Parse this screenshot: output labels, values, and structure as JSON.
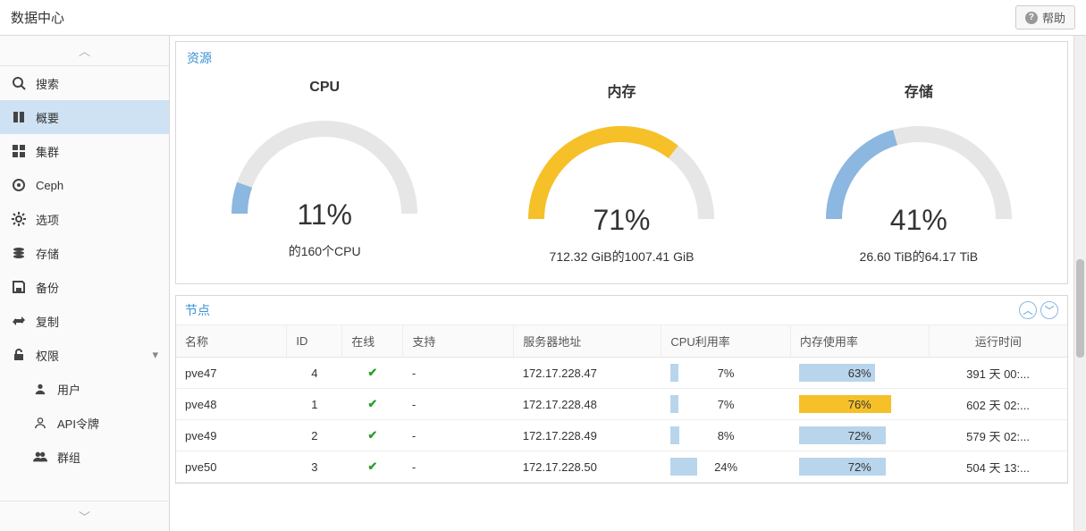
{
  "header": {
    "title": "数据中心",
    "help_label": "帮助"
  },
  "sidebar": {
    "items": [
      {
        "id": "search",
        "label": "搜索",
        "icon": "search",
        "active": false,
        "sub": false,
        "caret": false
      },
      {
        "id": "summary",
        "label": "概要",
        "icon": "book",
        "active": true,
        "sub": false,
        "caret": false
      },
      {
        "id": "cluster",
        "label": "集群",
        "icon": "grid",
        "active": false,
        "sub": false,
        "caret": false
      },
      {
        "id": "ceph",
        "label": "Ceph",
        "icon": "target",
        "active": false,
        "sub": false,
        "caret": false
      },
      {
        "id": "options",
        "label": "选项",
        "icon": "gear",
        "active": false,
        "sub": false,
        "caret": false
      },
      {
        "id": "storage",
        "label": "存储",
        "icon": "stack",
        "active": false,
        "sub": false,
        "caret": false
      },
      {
        "id": "backup",
        "label": "备份",
        "icon": "save",
        "active": false,
        "sub": false,
        "caret": false
      },
      {
        "id": "replication",
        "label": "复制",
        "icon": "repeat",
        "active": false,
        "sub": false,
        "caret": false
      },
      {
        "id": "permissions",
        "label": "权限",
        "icon": "unlock",
        "active": false,
        "sub": false,
        "caret": true
      },
      {
        "id": "users",
        "label": "用户",
        "icon": "user",
        "active": false,
        "sub": true,
        "caret": false
      },
      {
        "id": "api-tokens",
        "label": "API令牌",
        "icon": "outline-user",
        "active": false,
        "sub": true,
        "caret": false
      },
      {
        "id": "groups",
        "label": "群组",
        "icon": "users",
        "active": false,
        "sub": true,
        "caret": false
      }
    ]
  },
  "resources": {
    "panel_title": "资源",
    "gauges": [
      {
        "id": "cpu",
        "label": "CPU",
        "percent": 11,
        "percent_text": "11%",
        "subtitle": "的160个CPU",
        "color": "#8bb7e0",
        "track": "#e6e6e6"
      },
      {
        "id": "memory",
        "label": "内存",
        "percent": 71,
        "percent_text": "71%",
        "subtitle": "712.32 GiB的1007.41 GiB",
        "color": "#f6c028",
        "track": "#e6e6e6"
      },
      {
        "id": "storage",
        "label": "存储",
        "percent": 41,
        "percent_text": "41%",
        "subtitle": "26.60 TiB的64.17 TiB",
        "color": "#8bb7e0",
        "track": "#e6e6e6"
      }
    ]
  },
  "nodes": {
    "panel_title": "节点",
    "columns": {
      "name": "名称",
      "id": "ID",
      "online": "在线",
      "support": "支持",
      "address": "服务器地址",
      "cpu": "CPU利用率",
      "mem": "内存使用率",
      "uptime": "运行时间"
    },
    "column_widths": {
      "name": 120,
      "id": 60,
      "online": 66,
      "support": 120,
      "address": 160,
      "cpu": 140,
      "mem": 150,
      "uptime": 150
    },
    "rows": [
      {
        "name": "pve47",
        "id": "4",
        "online": true,
        "support": "-",
        "address": "172.17.228.47",
        "cpu_pct": 7,
        "cpu_text": "7%",
        "mem_pct": 63,
        "mem_text": "63%",
        "mem_warn": false,
        "uptime": "391 天 00:..."
      },
      {
        "name": "pve48",
        "id": "1",
        "online": true,
        "support": "-",
        "address": "172.17.228.48",
        "cpu_pct": 7,
        "cpu_text": "7%",
        "mem_pct": 76,
        "mem_text": "76%",
        "mem_warn": true,
        "uptime": "602 天 02:..."
      },
      {
        "name": "pve49",
        "id": "2",
        "online": true,
        "support": "-",
        "address": "172.17.228.49",
        "cpu_pct": 8,
        "cpu_text": "8%",
        "mem_pct": 72,
        "mem_text": "72%",
        "mem_warn": false,
        "uptime": "579 天 02:..."
      },
      {
        "name": "pve50",
        "id": "3",
        "online": true,
        "support": "-",
        "address": "172.17.228.50",
        "cpu_pct": 24,
        "cpu_text": "24%",
        "mem_pct": 72,
        "mem_text": "72%",
        "mem_warn": false,
        "uptime": "504 天 13:..."
      }
    ],
    "bar_color": "#b9d5ec",
    "bar_warn_color": "#f6c028"
  },
  "colors": {
    "accent": "#3892d4",
    "sidebar_active": "#cfe2f3",
    "border": "#d8d8d8"
  }
}
